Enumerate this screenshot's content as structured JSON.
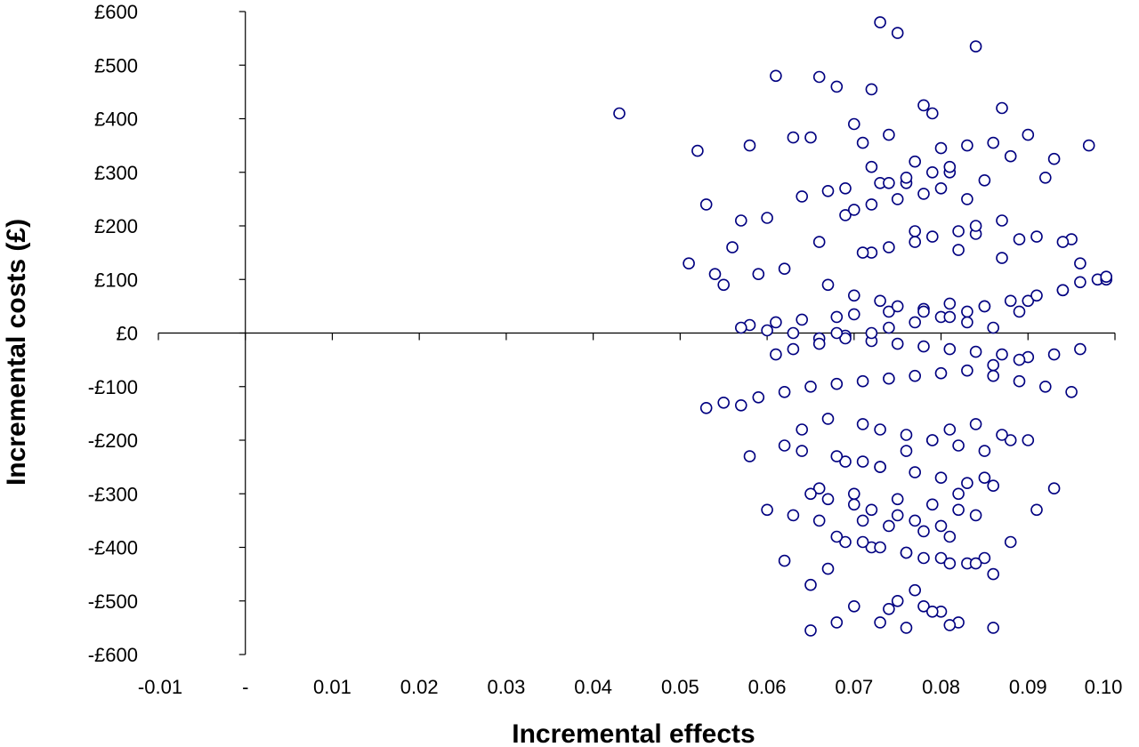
{
  "chart_data": {
    "type": "scatter",
    "title": "",
    "xlabel": "Incremental effects",
    "ylabel": "Incremental costs (£)",
    "xlim": [
      -0.01,
      0.1
    ],
    "ylim": [
      -600,
      600
    ],
    "x_ticks": [
      -0.01,
      0,
      0.01,
      0.02,
      0.03,
      0.04,
      0.05,
      0.06,
      0.07,
      0.08,
      0.09,
      0.1
    ],
    "x_tick_labels": [
      "-0.01",
      "-",
      "0.01",
      "0.02",
      "0.03",
      "0.04",
      "0.05",
      "0.06",
      "0.07",
      "0.08",
      "0.09",
      "0.10"
    ],
    "y_ticks": [
      600,
      500,
      400,
      300,
      200,
      100,
      0,
      -100,
      -200,
      -300,
      -400,
      -500,
      -600
    ],
    "y_tick_labels": [
      "£600",
      "£500",
      "£400",
      "£300",
      "£200",
      "£100",
      "£0",
      "-£100",
      "-£200",
      "-£300",
      "-£400",
      "-£500",
      "-£600"
    ],
    "grid": false,
    "marker_color": "#000080",
    "series": [
      {
        "x": [
          0.073,
          0.075,
          0.084,
          0.061,
          0.066,
          0.043,
          0.072,
          0.068,
          0.078,
          0.079,
          0.087,
          0.09,
          0.07,
          0.065,
          0.097,
          0.093,
          0.092,
          0.052,
          0.058,
          0.063,
          0.071,
          0.074,
          0.08,
          0.083,
          0.086,
          0.088,
          0.053,
          0.057,
          0.06,
          0.064,
          0.067,
          0.069,
          0.076,
          0.081,
          0.085,
          0.095,
          0.096,
          0.098,
          0.091,
          0.089,
          0.062,
          0.059,
          0.055,
          0.051,
          0.054,
          0.056,
          0.066,
          0.072,
          0.077,
          0.082,
          0.084,
          0.087,
          0.094,
          0.099,
          0.099,
          0.096,
          0.094,
          0.09,
          0.089,
          0.085,
          0.081,
          0.078,
          0.074,
          0.07,
          0.068,
          0.064,
          0.061,
          0.058,
          0.057,
          0.06,
          0.063,
          0.066,
          0.069,
          0.072,
          0.075,
          0.078,
          0.081,
          0.084,
          0.087,
          0.09,
          0.093,
          0.096,
          0.053,
          0.055,
          0.057,
          0.059,
          0.062,
          0.065,
          0.068,
          0.071,
          0.074,
          0.077,
          0.08,
          0.083,
          0.086,
          0.089,
          0.092,
          0.095,
          0.067,
          0.071,
          0.073,
          0.076,
          0.079,
          0.082,
          0.085,
          0.088,
          0.064,
          0.058,
          0.069,
          0.073,
          0.077,
          0.08,
          0.083,
          0.086,
          0.066,
          0.07,
          0.075,
          0.079,
          0.082,
          0.084,
          0.071,
          0.074,
          0.078,
          0.081,
          0.069,
          0.072,
          0.076,
          0.08,
          0.083,
          0.085,
          0.067,
          0.065,
          0.062,
          0.06,
          0.063,
          0.066,
          0.068,
          0.071,
          0.073,
          0.076,
          0.078,
          0.081,
          0.084,
          0.086,
          0.088,
          0.091,
          0.093,
          0.065,
          0.067,
          0.07,
          0.072,
          0.075,
          0.077,
          0.08,
          0.082,
          0.085,
          0.087,
          0.09,
          0.062,
          0.064,
          0.068,
          0.071,
          0.073,
          0.076,
          0.079,
          0.081,
          0.084,
          0.086,
          0.089,
          0.061,
          0.063,
          0.066,
          0.069,
          0.072,
          0.074,
          0.077,
          0.08,
          0.083,
          0.085,
          0.088,
          0.091,
          0.094,
          0.067,
          0.07,
          0.073,
          0.075,
          0.078,
          0.081,
          0.083,
          0.086,
          0.068,
          0.071,
          0.074,
          0.077,
          0.079,
          0.082,
          0.084,
          0.087,
          0.069,
          0.072,
          0.075,
          0.078,
          0.08,
          0.083,
          0.07,
          0.073,
          0.076,
          0.079,
          0.081,
          0.074,
          0.077,
          0.072,
          0.075,
          0.078,
          0.08,
          0.082,
          0.076,
          0.07,
          0.065,
          0.073,
          0.079,
          0.081,
          0.086,
          0.068,
          0.074,
          0.077
        ],
        "y": [
          580,
          560,
          535,
          480,
          478,
          410,
          455,
          460,
          425,
          410,
          420,
          370,
          390,
          365,
          350,
          325,
          290,
          340,
          350,
          365,
          355,
          370,
          345,
          350,
          355,
          330,
          240,
          210,
          215,
          255,
          265,
          270,
          280,
          300,
          285,
          175,
          130,
          100,
          180,
          175,
          120,
          110,
          90,
          130,
          110,
          160,
          170,
          150,
          190,
          155,
          185,
          140,
          170,
          100,
          105,
          95,
          80,
          60,
          40,
          50,
          55,
          45,
          40,
          35,
          30,
          25,
          20,
          15,
          10,
          5,
          0,
          -10,
          -5,
          -15,
          -20,
          -25,
          -30,
          -35,
          -40,
          -45,
          -40,
          -30,
          -140,
          -130,
          -135,
          -120,
          -110,
          -100,
          -95,
          -90,
          -85,
          -80,
          -75,
          -70,
          -80,
          -90,
          -100,
          -110,
          -160,
          -170,
          -180,
          -190,
          -200,
          -210,
          -220,
          -200,
          -180,
          -230,
          -240,
          -250,
          -260,
          -270,
          -280,
          -285,
          -290,
          -300,
          -310,
          -320,
          -330,
          -340,
          -350,
          -360,
          -370,
          -380,
          -390,
          -400,
          -410,
          -420,
          -430,
          -420,
          -440,
          -470,
          -425,
          -330,
          -340,
          -350,
          -380,
          -390,
          -400,
          -410,
          -420,
          -430,
          -430,
          -450,
          -390,
          -330,
          -290,
          -300,
          -310,
          -320,
          -330,
          -340,
          -350,
          -360,
          -300,
          -270,
          -190,
          -200,
          -210,
          -220,
          -230,
          -240,
          -250,
          -220,
          -200,
          -180,
          -170,
          -60,
          -50,
          -40,
          -30,
          -20,
          -10,
          0,
          10,
          20,
          30,
          40,
          50,
          60,
          70,
          80,
          90,
          70,
          60,
          50,
          40,
          30,
          20,
          10,
          0,
          150,
          160,
          170,
          180,
          190,
          200,
          210,
          220,
          240,
          250,
          260,
          270,
          250,
          230,
          280,
          290,
          300,
          310,
          280,
          320,
          310,
          -500,
          -510,
          -520,
          -540,
          -550,
          -510,
          -555,
          -540,
          -520,
          -545,
          -550,
          -540,
          -515,
          -480
        ]
      }
    ]
  }
}
